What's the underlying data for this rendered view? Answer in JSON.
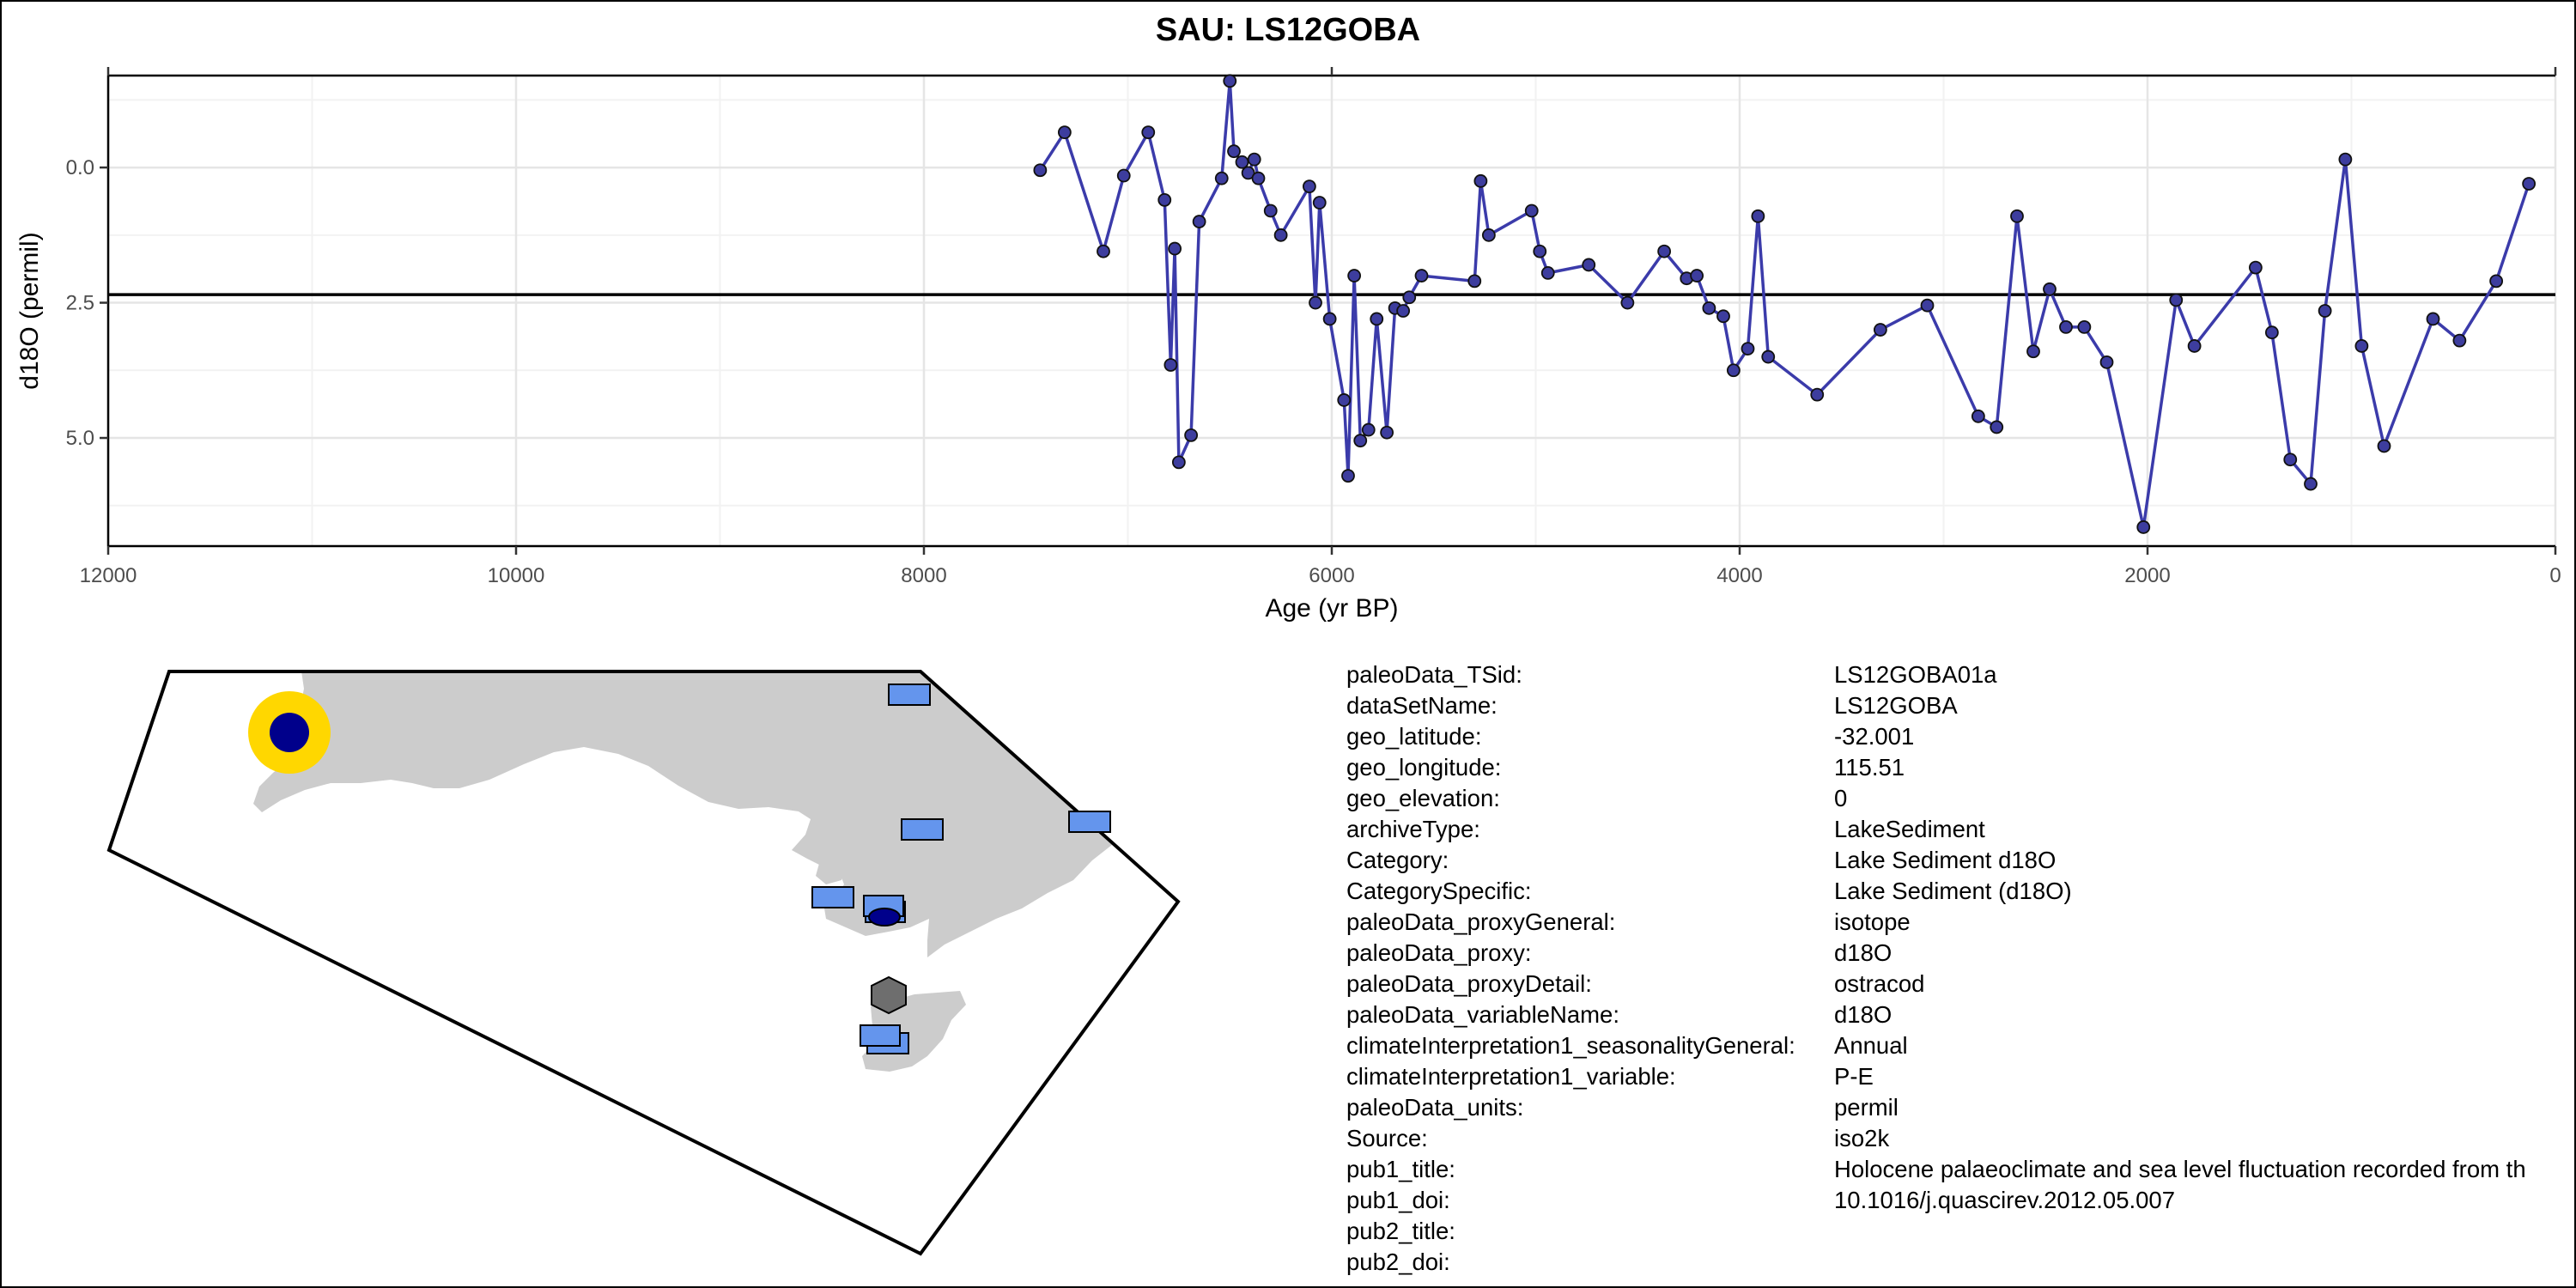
{
  "chart_data": {
    "type": "line",
    "title": "SAU: LS12GOBA",
    "xlabel": "Age (yr BP)",
    "ylabel": "d18O (permil)",
    "x_reversed": true,
    "y_reversed": true,
    "xlim": [
      12000,
      0
    ],
    "ylim": [
      7.0,
      -1.7
    ],
    "x_ticks": [
      12000,
      10000,
      8000,
      6000,
      4000,
      2000,
      0
    ],
    "x_tick_labels": [
      "12000",
      "10000",
      "8000",
      "6000",
      "4000",
      "2000",
      "0"
    ],
    "y_ticks": [
      0.0,
      2.5,
      5.0
    ],
    "y_tick_labels": [
      "0.0",
      "2.5",
      "5.0"
    ],
    "grid": true,
    "reference_line_y": 2.35,
    "line_color": "#3B3BAA",
    "point_fill": "#3D3D9E",
    "series": [
      {
        "x": [
          7430,
          7310,
          7120,
          7020,
          6900,
          6820,
          6790,
          6770,
          6750,
          6690,
          6650,
          6540,
          6500,
          6480,
          6440,
          6410,
          6380,
          6360,
          6300,
          6250,
          6110,
          6080,
          6060,
          6010,
          5940,
          5920,
          5890,
          5860,
          5820,
          5780,
          5730,
          5690,
          5650,
          5620,
          5560,
          5300,
          5270,
          5230,
          5020,
          4980,
          4940,
          4740,
          4550,
          4370,
          4260,
          4210,
          4150,
          4080,
          4030,
          3960,
          3910,
          3860,
          3620,
          3310,
          3080,
          2830,
          2740,
          2640,
          2560,
          2480,
          2400,
          2310,
          2200,
          2020,
          1860,
          1770,
          1470,
          1390,
          1300,
          1200,
          1130,
          1030,
          950,
          840,
          600,
          470,
          290,
          130
        ],
        "y": [
          0.05,
          -0.65,
          1.55,
          0.15,
          -0.65,
          0.6,
          3.65,
          1.5,
          5.45,
          4.95,
          1.0,
          0.2,
          -1.6,
          -0.3,
          -0.1,
          0.1,
          -0.15,
          0.2,
          0.8,
          1.25,
          0.35,
          2.5,
          0.65,
          2.8,
          4.3,
          5.7,
          2.0,
          5.05,
          4.85,
          2.8,
          4.9,
          2.6,
          2.65,
          2.4,
          2.0,
          2.1,
          0.25,
          1.25,
          0.8,
          1.55,
          1.95,
          1.8,
          2.5,
          1.55,
          2.05,
          2.0,
          2.6,
          2.75,
          3.75,
          3.35,
          0.9,
          3.5,
          4.2,
          3.0,
          2.55,
          4.6,
          4.8,
          0.9,
          3.4,
          2.25,
          2.95,
          2.95,
          3.6,
          6.65,
          2.45,
          3.3,
          1.85,
          3.05,
          5.4,
          5.85,
          2.65,
          -0.15,
          3.3,
          5.15,
          2.8,
          3.2,
          2.1,
          0.3
        ]
      }
    ]
  },
  "map": {
    "land_color": "#CCCCCC",
    "outline_color": "#000000",
    "site_ring_color": "#FFD700",
    "site_center_color": "#00008B",
    "marker_fill": "#6495ED",
    "marker_stroke": "#000000",
    "hexagon_fill": "#6E6E6E"
  },
  "metadata": [
    {
      "key": "paleoData_TSid:",
      "value": "LS12GOBA01a"
    },
    {
      "key": "dataSetName:",
      "value": "LS12GOBA"
    },
    {
      "key": "geo_latitude:",
      "value": "-32.001"
    },
    {
      "key": "geo_longitude:",
      "value": "115.51"
    },
    {
      "key": "geo_elevation:",
      "value": "0"
    },
    {
      "key": "archiveType:",
      "value": "LakeSediment"
    },
    {
      "key": "Category:",
      "value": "Lake Sediment d18O"
    },
    {
      "key": "CategorySpecific:",
      "value": "Lake Sediment (d18O)"
    },
    {
      "key": "paleoData_proxyGeneral:",
      "value": "isotope"
    },
    {
      "key": "paleoData_proxy:",
      "value": "d18O"
    },
    {
      "key": "paleoData_proxyDetail:",
      "value": "ostracod"
    },
    {
      "key": "paleoData_variableName:",
      "value": "d18O"
    },
    {
      "key": "climateInterpretation1_seasonalityGeneral:",
      "value": "Annual"
    },
    {
      "key": "climateInterpretation1_variable:",
      "value": "P-E"
    },
    {
      "key": "paleoData_units:",
      "value": "permil"
    },
    {
      "key": "Source:",
      "value": "iso2k"
    },
    {
      "key": "pub1_title:",
      "value": "Holocene palaeoclimate and sea level fluctuation recorded from th"
    },
    {
      "key": "pub1_doi:",
      "value": "10.1016/j.quascirev.2012.05.007"
    },
    {
      "key": "pub2_title:",
      "value": ""
    },
    {
      "key": "pub2_doi:",
      "value": ""
    }
  ]
}
